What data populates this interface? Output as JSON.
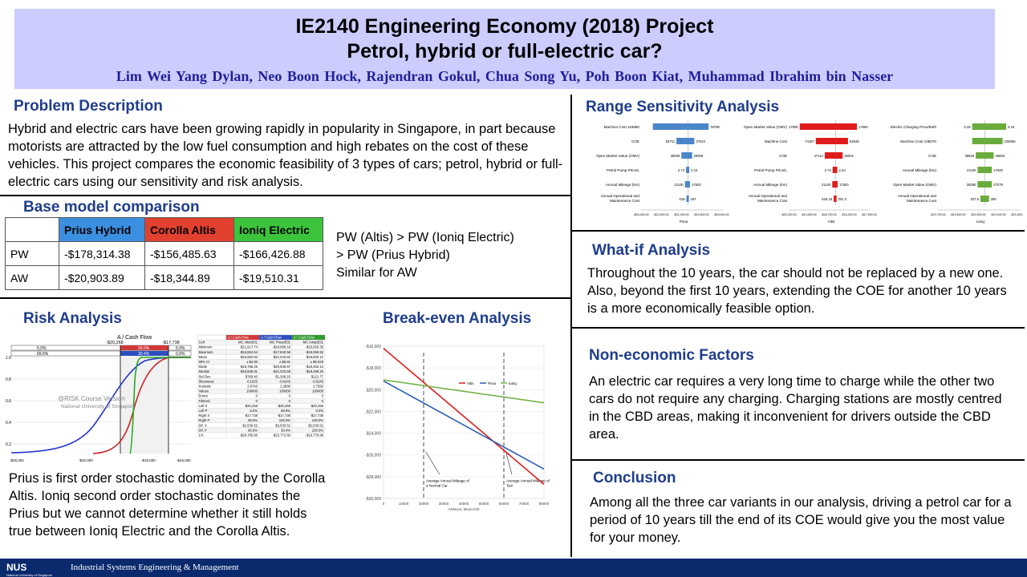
{
  "header": {
    "title_line1": "IE2140 Engineering Economy (2018) Project",
    "title_line2": "Petrol, hybrid or full-electric car?",
    "authors": "Lim Wei Yang Dylan, Neo Boon Hock, Rajendran Gokul, Chua Song Yu, Poh Boon Kiat, Muhammad Ibrahim bin Nasser"
  },
  "problem": {
    "heading": "Problem Description",
    "text": "Hybrid and electric cars have been growing rapidly in popularity in Singapore, in part because motorists are attracted by the low fuel consumption and high rebates on the cost of these vehicles. This project compares the economic feasibility of 3 types of cars; petrol, hybrid or full-electric cars using our sensitivity and risk analysis."
  },
  "base": {
    "heading": "Base model comparison",
    "columns": [
      "",
      "Prius Hybrid",
      "Corolla Altis",
      "Ioniq Electric"
    ],
    "column_colors": [
      "#ffffff",
      "#3b8fe0",
      "#e2412f",
      "#3cc43c"
    ],
    "rows": [
      [
        "PW",
        "-$178,314.38",
        "-$156,485.63",
        "-$166,426.88"
      ],
      [
        "AW",
        "-$20,903.89",
        "-$18,344.89",
        "-$19,510.31"
      ]
    ],
    "note_line1": "PW (Altis) > PW (Ioniq Electric)",
    "note_line2": "> PW (Prius Hybrid)",
    "note_line3": "Similar for AW"
  },
  "risk": {
    "heading": "Risk Analysis",
    "chart_title": "A / Cash Flow",
    "top_left_value": "-$20,268",
    "top_right_value": "-$17,738",
    "band_labels": [
      "5.0%",
      "90.0%",
      "5.0%",
      "69.6%",
      "30.4%",
      "0.0%"
    ],
    "y_ticks": [
      "1.0",
      "0.8",
      "0.6",
      "0.4",
      "0.2",
      "0.0"
    ],
    "x_ticks": [
      "-$25,000",
      "-$20,000",
      "-$18,000",
      "-$16,000"
    ],
    "watermark_line1": "@RISK Course Version",
    "watermark_line2": "National University of Singapore",
    "stats_header": [
      "",
      "A / Cash Flow",
      "A / Cash Flow",
      "A / Cash Flow"
    ],
    "stats_sub": [
      "Cell",
      "MC Altis!B31",
      "MC Prius!B31",
      "MC Ioniq!B31"
    ],
    "stats_rows": [
      [
        "Minimum",
        "-$21,917.74",
        "-$24,696.18",
        "-$19,929.36"
      ],
      [
        "Maximum",
        "-$16,552.54",
        "-$17,640.56",
        "-$19,069.92"
      ],
      [
        "Mean",
        "-$18,962.84",
        "-$21,043.82",
        "-$19,500.12"
      ],
      [
        "90% CI",
        "± $4.00",
        "± $6.81",
        "± $0.633"
      ],
      [
        "Mode",
        "-$18,785.29",
        "-$20,549.97",
        "-$19,482.13"
      ],
      [
        "Median",
        "-$18,935.91",
        "-$21,033.59",
        "-$19,499.25"
      ],
      [
        "Std Dev",
        "$769.40",
        "$1,309.16",
        "$121.77"
      ],
      [
        "Skewness",
        "-0.1525",
        "-0.0245",
        "-0.0245"
      ],
      [
        "Kurtosis",
        "2.6743",
        "2.2800",
        "2.7550"
      ],
      [
        "Values",
        "100000",
        "100000",
        "100000"
      ],
      [
        "Errors",
        "0",
        "0",
        "0"
      ],
      [
        "Filtered",
        "0",
        "0",
        "0"
      ],
      [
        "Left X",
        "-$20,268",
        "-$20,268",
        "-$20,268"
      ],
      [
        "Left P",
        "5.0%",
        "69.6%",
        "0.0%"
      ],
      [
        "Right X",
        "-$17,738",
        "-$17,738",
        "-$17,738"
      ],
      [
        "Right P",
        "95.0%",
        "100.0%",
        "100.0%"
      ],
      [
        "Dif. X",
        "$2,530.52",
        "$2,530.52",
        "$2,530.52"
      ],
      [
        "Dif. P",
        "90.0%",
        "30.4%",
        "100.0%"
      ],
      [
        "1%",
        "-$20,765.56",
        "-$23,772.60",
        "-$19,776.99"
      ]
    ],
    "text": "Prius is first order stochastic dominated by the Corolla Altis. Ioniq second order stochastic dominates the Prius but we cannot determine whether it still holds true between Ioniq Electric and the Corolla Altis."
  },
  "breakeven": {
    "heading": "Break-even Analysis",
    "y_ticks": [
      "-$16,000",
      "-$18,000",
      "-$20,000",
      "-$22,000",
      "-$24,000",
      "-$26,000",
      "-$28,000",
      "-$30,000"
    ],
    "x_ticks": [
      "0",
      "10000",
      "20000",
      "30000",
      "40000",
      "50000",
      "60000",
      "70000",
      "80000"
    ],
    "x_label": "ANNUAL MILEAGE",
    "legend": [
      "Altis",
      "Prius",
      "Ioniq"
    ],
    "annot1_line1": "Average Annual Mileage of",
    "annot1_line2": "a Normal Car",
    "annot2_line1": "Average Annual Mileage of",
    "annot2_line2": "Taxi"
  },
  "range": {
    "heading": "Range Sensitivity Analysis",
    "charts": [
      {
        "name": "Prius",
        "color": "#4a86c8",
        "rows": [
          {
            "label": "Machine Cost 116960",
            "left": "",
            "right": "78799"
          },
          {
            "label": "COE",
            "left": "53711",
            "right": "37010"
          },
          {
            "label": "Open Market Value (OMV)",
            "left": "35008",
            "right": "29008"
          },
          {
            "label": "Petrol Pump Price/L",
            "left": "2.74",
            "right": "2.23"
          },
          {
            "label": "Annual Mileage (km)",
            "left": "21100",
            "right": "17500"
          },
          {
            "label": "Annual Operational and Maintenance Cost",
            "left": "618",
            "right": "297"
          }
        ],
        "x_ticks": [
          "-$24,000.00",
          "-$22,500.00",
          "-$21,000.00",
          "-$19,500.00",
          "-$18,000.00"
        ]
      },
      {
        "name": "Altis",
        "color": "#e01b1b",
        "rows": [
          {
            "label": "Open Market Value (OMV)",
            "left": "37690",
            "right": "17690"
          },
          {
            "label": "Machine Cost",
            "left": "74187",
            "right": "62849"
          },
          {
            "label": "COE",
            "left": "47112",
            "right": "36001"
          },
          {
            "label": "Petrol Pump Price/L",
            "left": "2.74",
            "right": "2.23"
          },
          {
            "label": "Annual Mileage (km)",
            "left": "21100",
            "right": "17500"
          },
          {
            "label": "Annual Operational and Maintenance Cost",
            "left": "626.18",
            "right": "301.3"
          }
        ],
        "x_ticks": [
          "-$20,250.00",
          "-$19,500.00",
          "-$18,750.00",
          "-$18,250.00",
          "-$17,500.00"
        ]
      },
      {
        "name": "Ioniq",
        "color": "#6aac3c",
        "rows": [
          {
            "label": "Electric Charging Price/kWh",
            "left": "0.26",
            "right": "0.18"
          },
          {
            "label": "Machine Cost 108070",
            "left": "",
            "right": "106058"
          },
          {
            "label": "COE",
            "left": "38830",
            "right": "36830"
          },
          {
            "label": "Annual Mileage (km)",
            "left": "21100",
            "right": "17500"
          },
          {
            "label": "Open Market Value (OMV)",
            "left": "28280",
            "right": "27079"
          },
          {
            "label": "Annual Operational and Maintenance Cost",
            "left": "337.6",
            "right": "280"
          }
        ],
        "x_ticks": [
          "-$19,700.00",
          "-$19,600.00",
          "-$19,500.00",
          "-$19,400.00",
          "-$19,300.00"
        ]
      }
    ]
  },
  "whatif": {
    "heading": "What-if Analysis",
    "text": "Throughout the 10 years, the car should not be replaced by a new one. Also, beyond the first 10 years, extending the COE for another 10 years is a more economically feasible option."
  },
  "noneco": {
    "heading": "Non-economic Factors",
    "text": "An electric car requires a very long time to charge while the other two cars do not require any charging. Charging stations are mostly centred in the CBD areas, making it inconvenient for drivers outside the CBD area."
  },
  "conclusion": {
    "heading": "Conclusion",
    "text": "Among all the three car variants in our analysis, driving a petrol car for a period of 10 years till the end of its COE would give you the most value for your money."
  },
  "footer": {
    "logo": "NUS",
    "logo_sub": "National University of Singapore",
    "dept": "Industrial Systems Engineering & Management"
  },
  "chart_data": [
    {
      "type": "line",
      "title": "",
      "xlabel": "ANNUAL MILEAGE",
      "ylabel": "",
      "x": [
        0,
        80000
      ],
      "xlim": [
        0,
        80000
      ],
      "ylim": [
        -30000,
        -16000
      ],
      "series": [
        {
          "name": "Altis",
          "color": "#e01b1b",
          "x": [
            0,
            80000
          ],
          "values": [
            -16200,
            -28700
          ]
        },
        {
          "name": "Prius",
          "color": "#2a5fb4",
          "x": [
            0,
            80000
          ],
          "values": [
            -19200,
            -27300
          ]
        },
        {
          "name": "Ioniq",
          "color": "#77b24a",
          "x": [
            0,
            80000
          ],
          "values": [
            -19100,
            -21200
          ]
        }
      ]
    }
  ]
}
